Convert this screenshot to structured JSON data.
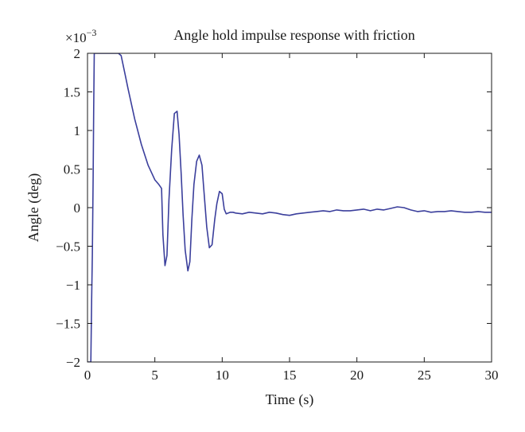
{
  "chart_data": {
    "type": "line",
    "title": "Angle hold impulse response with friction",
    "xlabel": "Time (s)",
    "ylabel": "Angle (deg)",
    "y_multiplier": {
      "base": "×10",
      "exponent": "−3"
    },
    "xlim": [
      0,
      30
    ],
    "ylim": [
      -2,
      2
    ],
    "x_ticks": [
      0,
      5,
      10,
      15,
      20,
      25,
      30
    ],
    "x_tick_labels": [
      "0",
      "5",
      "10",
      "15",
      "20",
      "25",
      "30"
    ],
    "y_ticks": [
      2,
      1.5,
      1,
      0.5,
      0,
      -0.5,
      -1,
      -1.5,
      -2
    ],
    "y_tick_labels": [
      "2",
      "1.5",
      "1",
      "0.5",
      "0",
      "−0.5",
      "−1",
      "−1.5",
      "−2"
    ],
    "grid": false,
    "line_color": "#3b3f9c",
    "series": [
      {
        "x": [
          0.0,
          0.08,
          0.16,
          0.25,
          0.31,
          0.36,
          0.42,
          0.46,
          0.5,
          0.58,
          0.7,
          0.85,
          1.0,
          1.2,
          1.4,
          1.7,
          2.0,
          2.3,
          2.5,
          2.8,
          3.0,
          3.5,
          4.0,
          4.5,
          5.0,
          5.3,
          5.5,
          5.6,
          5.75,
          5.9,
          6.05,
          6.25,
          6.45,
          6.65,
          6.8,
          6.95,
          7.1,
          7.25,
          7.45,
          7.6,
          7.75,
          7.9,
          8.1,
          8.3,
          8.5,
          8.65,
          8.85,
          9.05,
          9.25,
          9.45,
          9.6,
          9.8,
          10.0,
          10.15,
          10.3,
          10.45,
          10.6,
          10.8,
          11.0,
          11.5,
          12.0,
          12.5,
          13.0,
          13.5,
          14.0,
          14.5,
          15.0,
          15.5,
          16.0,
          16.5,
          17.0,
          17.5,
          18.0,
          18.5,
          19.0,
          19.5,
          20.0,
          20.5,
          21.0,
          21.5,
          22.0,
          22.5,
          23.0,
          23.5,
          24.0,
          24.5,
          25.0,
          25.5,
          26.0,
          26.5,
          27.0,
          27.5,
          28.0,
          28.5,
          29.0,
          29.5,
          30.0
        ],
        "y": [
          -2.0,
          -2.0,
          -2.0,
          -2.0,
          -1.2,
          -0.6,
          0.4,
          1.3,
          2.0,
          2.0,
          2.0,
          2.0,
          2.0,
          2.0,
          2.0,
          2.0,
          2.0,
          2.0,
          1.97,
          1.72,
          1.55,
          1.15,
          0.82,
          0.55,
          0.36,
          0.3,
          0.25,
          -0.35,
          -0.75,
          -0.62,
          0.1,
          0.75,
          1.22,
          1.25,
          0.95,
          0.45,
          -0.1,
          -0.55,
          -0.82,
          -0.7,
          -0.15,
          0.3,
          0.6,
          0.68,
          0.55,
          0.2,
          -0.25,
          -0.52,
          -0.48,
          -0.15,
          0.05,
          0.21,
          0.18,
          -0.02,
          -0.08,
          -0.07,
          -0.06,
          -0.06,
          -0.07,
          -0.08,
          -0.06,
          -0.07,
          -0.08,
          -0.06,
          -0.07,
          -0.09,
          -0.1,
          -0.08,
          -0.07,
          -0.06,
          -0.05,
          -0.04,
          -0.05,
          -0.03,
          -0.04,
          -0.04,
          -0.03,
          -0.02,
          -0.04,
          -0.02,
          -0.03,
          -0.01,
          0.01,
          0.0,
          -0.03,
          -0.05,
          -0.04,
          -0.06,
          -0.05,
          -0.05,
          -0.04,
          -0.05,
          -0.06,
          -0.06,
          -0.05,
          -0.06,
          -0.06
        ]
      }
    ]
  }
}
